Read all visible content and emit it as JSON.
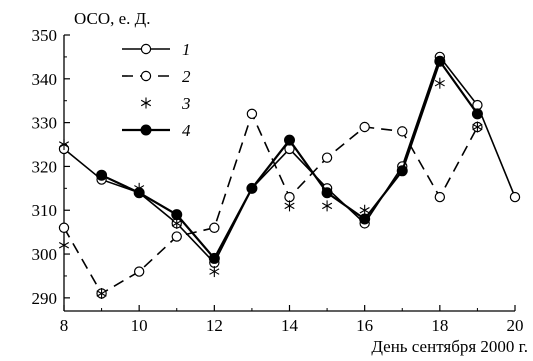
{
  "chart_data": {
    "type": "line",
    "ylabel": "ОСО, е. Д.",
    "xlabel": "День сентября 2000 г.",
    "xlim": [
      8,
      20
    ],
    "ylim": [
      287,
      350
    ],
    "xticks": [
      8,
      10,
      12,
      14,
      16,
      18,
      20
    ],
    "yticks": [
      290,
      300,
      310,
      320,
      330,
      340,
      350
    ],
    "grid": false,
    "legend_position": "top-left",
    "series": [
      {
        "name": "1",
        "style": "solid-line-open-circle",
        "color": "#000000",
        "x": [
          8,
          9,
          10,
          11,
          12,
          13,
          14,
          15,
          16,
          17,
          18,
          19,
          20
        ],
        "y": [
          324,
          317,
          314,
          307,
          298,
          315,
          324,
          315,
          307,
          320,
          345,
          334,
          313
        ]
      },
      {
        "name": "2",
        "style": "dashed-line-open-circle",
        "color": "#000000",
        "x": [
          8,
          9,
          10,
          11,
          12,
          13,
          14,
          15,
          16,
          17,
          18,
          19
        ],
        "y": [
          306,
          291,
          296,
          304,
          306,
          332,
          313,
          322,
          329,
          328,
          313,
          329
        ]
      },
      {
        "name": "3",
        "style": "asterisk-marker",
        "color": "#000000",
        "x": [
          8,
          8,
          9,
          10,
          11,
          12,
          14,
          15,
          16,
          18,
          19
        ],
        "y": [
          325,
          302,
          291,
          315,
          307,
          296,
          311,
          311,
          310,
          339,
          329
        ]
      },
      {
        "name": "4",
        "style": "solid-line-filled-circle",
        "color": "#000000",
        "x": [
          9,
          10,
          11,
          12,
          13,
          14,
          15,
          16,
          17,
          18,
          19
        ],
        "y": [
          318,
          314,
          309,
          299,
          315,
          326,
          314,
          308,
          319,
          344,
          332
        ]
      }
    ]
  }
}
